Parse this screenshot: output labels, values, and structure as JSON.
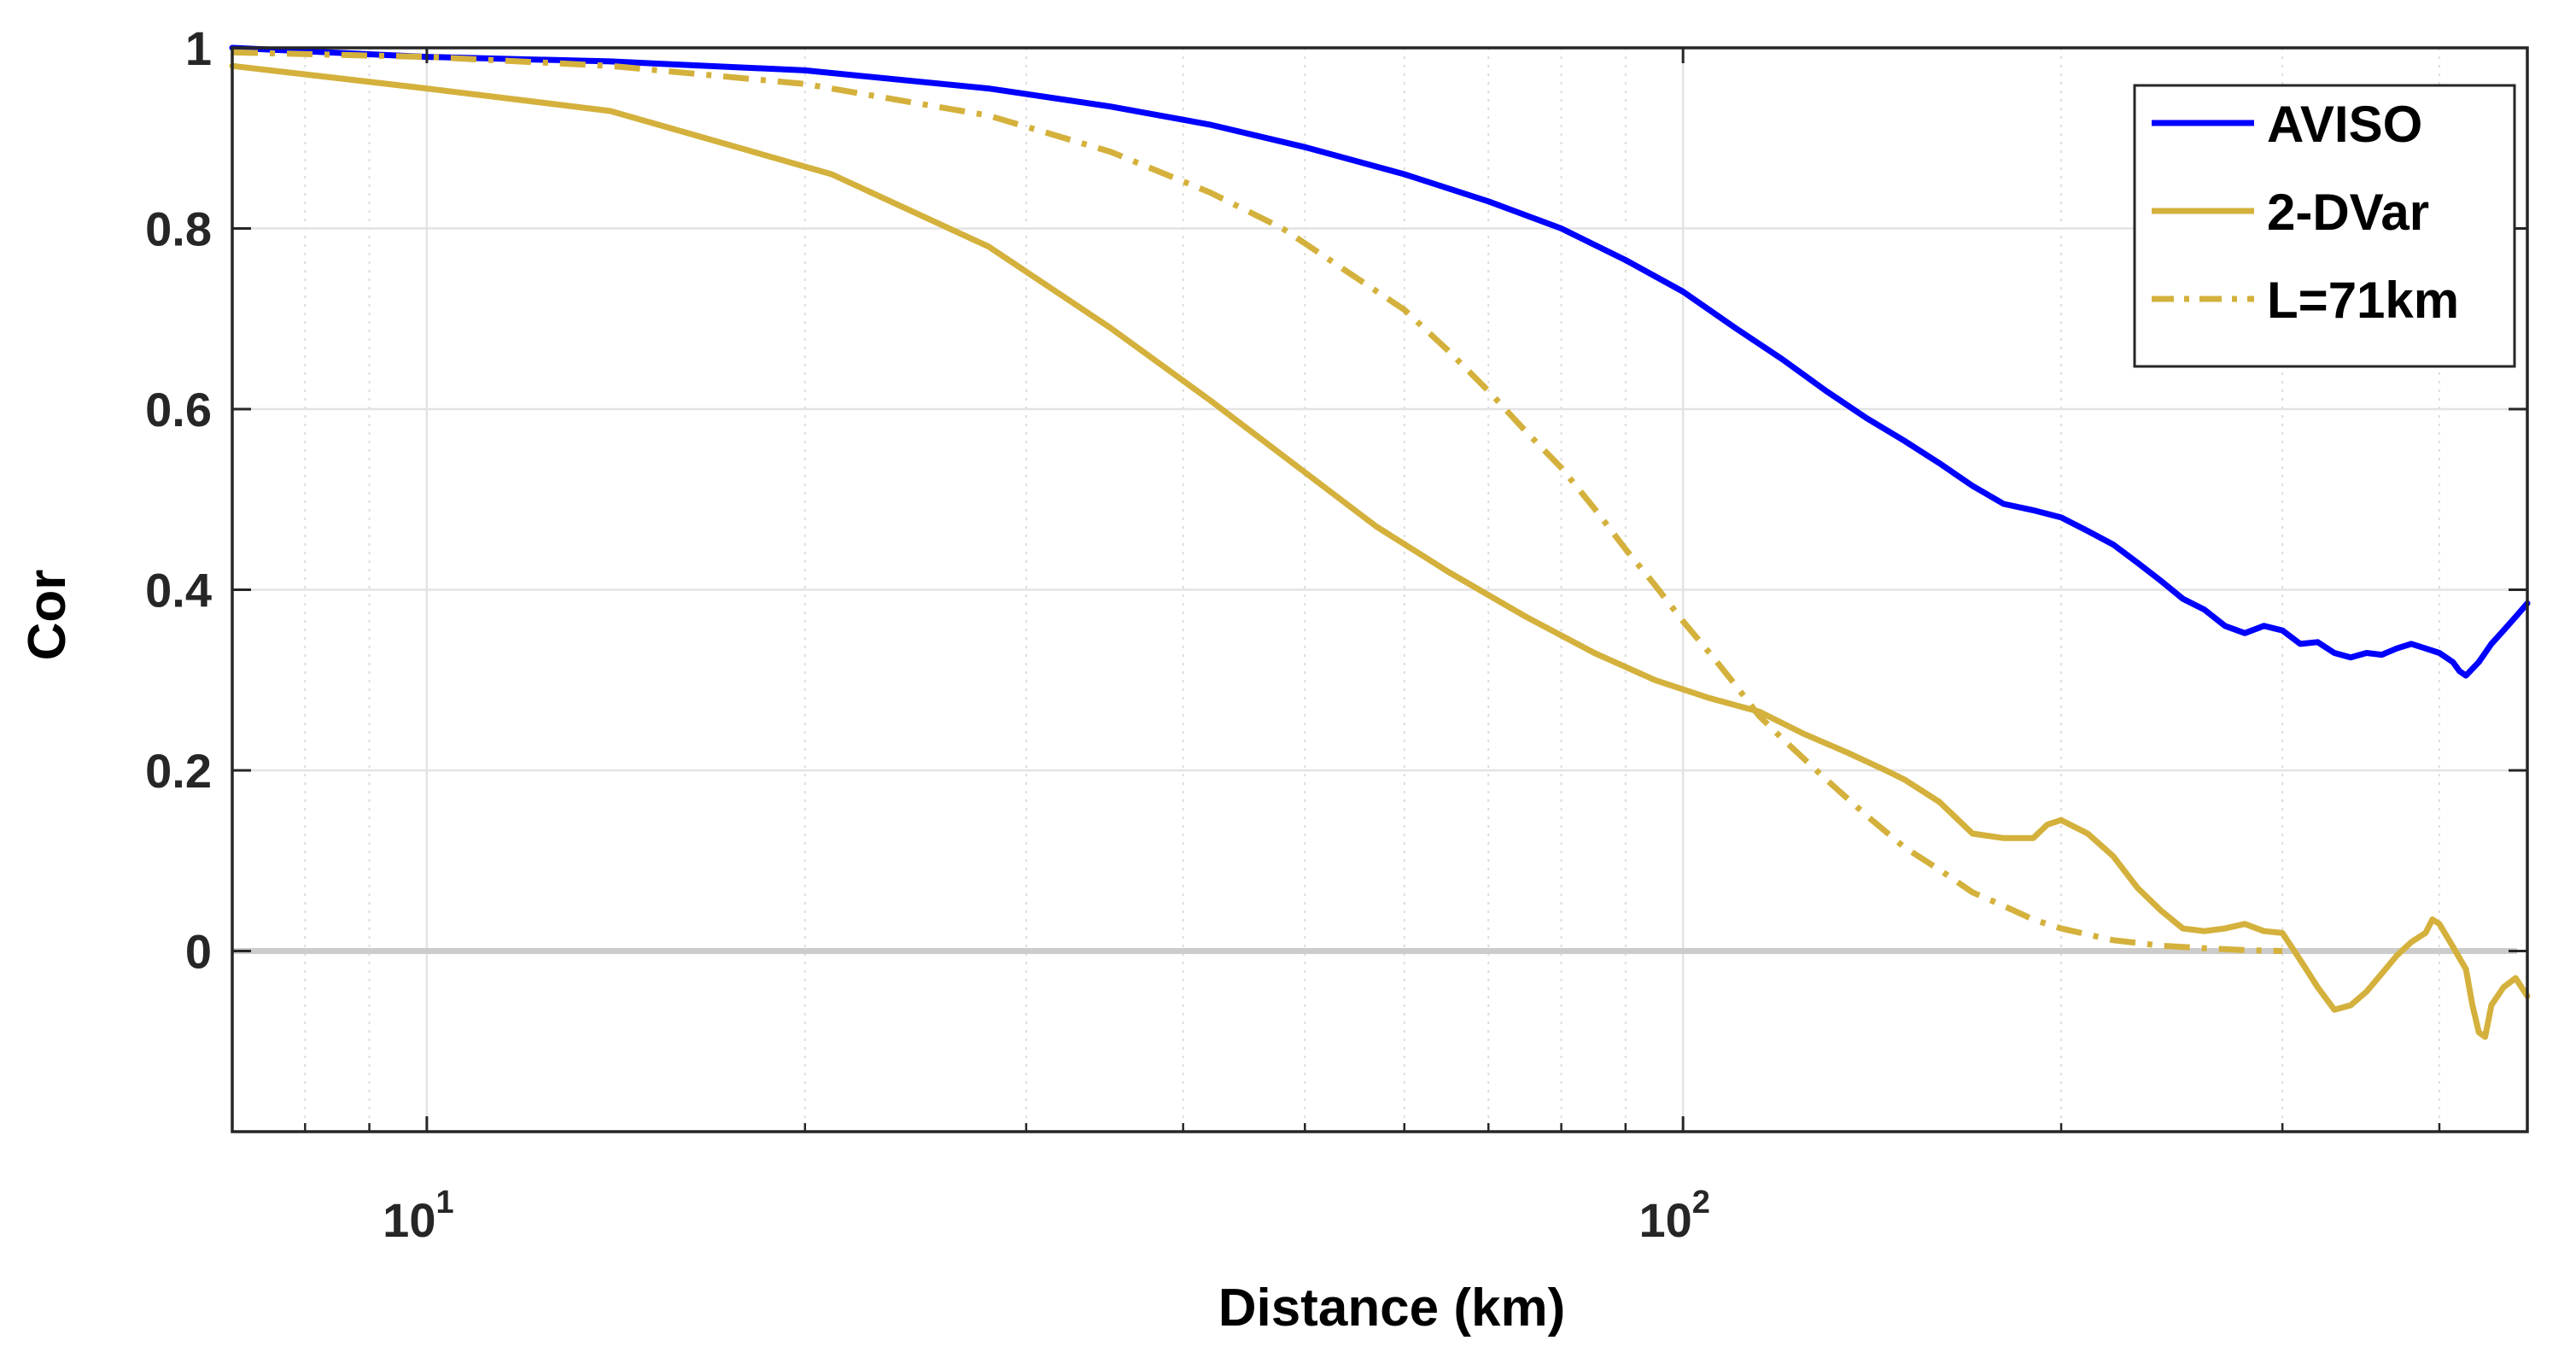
{
  "chart_data": {
    "type": "line",
    "xlabel": "Distance (km)",
    "ylabel": "Cor",
    "xscale": "log",
    "xlim": [
      7,
      470
    ],
    "ylim": [
      -0.2,
      1
    ],
    "grid": true,
    "x_ticks": [
      {
        "value": 10,
        "base": "10",
        "exp": "1"
      },
      {
        "value": 100,
        "base": "10",
        "exp": "2"
      }
    ],
    "y_ticks": [
      {
        "value": 0,
        "label": "0"
      },
      {
        "value": 0.2,
        "label": "0.2"
      },
      {
        "value": 0.4,
        "label": "0.4"
      },
      {
        "value": 0.6,
        "label": "0.6"
      },
      {
        "value": 0.8,
        "label": "0.8"
      },
      {
        "value": 1,
        "label": "1"
      }
    ],
    "zero_line": {
      "y": 0,
      "color": "#cccccc"
    },
    "legend": {
      "location": "top-right"
    },
    "series": [
      {
        "name": "AVISO",
        "color": "#0000ff",
        "style": "solid",
        "points": [
          [
            7,
            1.0
          ],
          [
            10,
            0.99
          ],
          [
            14,
            0.985
          ],
          [
            20,
            0.975
          ],
          [
            28,
            0.955
          ],
          [
            35,
            0.935
          ],
          [
            42,
            0.915
          ],
          [
            50,
            0.89
          ],
          [
            60,
            0.86
          ],
          [
            70,
            0.83
          ],
          [
            80,
            0.8
          ],
          [
            90,
            0.765
          ],
          [
            100,
            0.73
          ],
          [
            110,
            0.69
          ],
          [
            120,
            0.655
          ],
          [
            130,
            0.62
          ],
          [
            140,
            0.59
          ],
          [
            150,
            0.565
          ],
          [
            160,
            0.54
          ],
          [
            170,
            0.515
          ],
          [
            180,
            0.495
          ],
          [
            190,
            0.488
          ],
          [
            200,
            0.48
          ],
          [
            210,
            0.465
          ],
          [
            220,
            0.45
          ],
          [
            230,
            0.43
          ],
          [
            240,
            0.41
          ],
          [
            250,
            0.39
          ],
          [
            260,
            0.378
          ],
          [
            270,
            0.36
          ],
          [
            280,
            0.352
          ],
          [
            290,
            0.36
          ],
          [
            300,
            0.355
          ],
          [
            310,
            0.34
          ],
          [
            320,
            0.342
          ],
          [
            330,
            0.33
          ],
          [
            340,
            0.325
          ],
          [
            350,
            0.33
          ],
          [
            360,
            0.328
          ],
          [
            370,
            0.335
          ],
          [
            380,
            0.34
          ],
          [
            390,
            0.335
          ],
          [
            400,
            0.33
          ],
          [
            410,
            0.32
          ],
          [
            415,
            0.31
          ],
          [
            420,
            0.305
          ],
          [
            430,
            0.32
          ],
          [
            440,
            0.34
          ],
          [
            450,
            0.355
          ],
          [
            460,
            0.37
          ],
          [
            470,
            0.385
          ]
        ]
      },
      {
        "name": "2-DVar",
        "color": "#d4b13c",
        "style": "solid",
        "points": [
          [
            7,
            0.98
          ],
          [
            10,
            0.955
          ],
          [
            14,
            0.93
          ],
          [
            21,
            0.86
          ],
          [
            28,
            0.78
          ],
          [
            35,
            0.69
          ],
          [
            42,
            0.61
          ],
          [
            50,
            0.53
          ],
          [
            57,
            0.47
          ],
          [
            65,
            0.42
          ],
          [
            75,
            0.37
          ],
          [
            85,
            0.33
          ],
          [
            95,
            0.3
          ],
          [
            105,
            0.28
          ],
          [
            115,
            0.265
          ],
          [
            125,
            0.24
          ],
          [
            135,
            0.22
          ],
          [
            145,
            0.2
          ],
          [
            150,
            0.19
          ],
          [
            160,
            0.165
          ],
          [
            170,
            0.13
          ],
          [
            180,
            0.125
          ],
          [
            190,
            0.125
          ],
          [
            195,
            0.14
          ],
          [
            200,
            0.145
          ],
          [
            210,
            0.13
          ],
          [
            220,
            0.105
          ],
          [
            230,
            0.07
          ],
          [
            240,
            0.045
          ],
          [
            250,
            0.025
          ],
          [
            260,
            0.022
          ],
          [
            270,
            0.025
          ],
          [
            280,
            0.03
          ],
          [
            290,
            0.022
          ],
          [
            300,
            0.02
          ],
          [
            310,
            -0.01
          ],
          [
            320,
            -0.04
          ],
          [
            330,
            -0.065
          ],
          [
            340,
            -0.06
          ],
          [
            350,
            -0.045
          ],
          [
            360,
            -0.025
          ],
          [
            370,
            -0.005
          ],
          [
            380,
            0.01
          ],
          [
            390,
            0.02
          ],
          [
            395,
            0.035
          ],
          [
            400,
            0.03
          ],
          [
            410,
            0.005
          ],
          [
            420,
            -0.02
          ],
          [
            425,
            -0.06
          ],
          [
            430,
            -0.09
          ],
          [
            435,
            -0.095
          ],
          [
            440,
            -0.06
          ],
          [
            450,
            -0.04
          ],
          [
            460,
            -0.03
          ],
          [
            465,
            -0.04
          ],
          [
            470,
            -0.05
          ]
        ]
      },
      {
        "name": "L=71km",
        "color": "#d4b13c",
        "style": "dashdot",
        "points": [
          [
            7,
            0.995
          ],
          [
            10,
            0.99
          ],
          [
            14,
            0.98
          ],
          [
            20,
            0.96
          ],
          [
            28,
            0.925
          ],
          [
            35,
            0.885
          ],
          [
            42,
            0.84
          ],
          [
            48,
            0.8
          ],
          [
            55,
            0.745
          ],
          [
            60,
            0.71
          ],
          [
            65,
            0.665
          ],
          [
            70,
            0.62
          ],
          [
            75,
            0.575
          ],
          [
            80,
            0.535
          ],
          [
            85,
            0.49
          ],
          [
            90,
            0.445
          ],
          [
            95,
            0.405
          ],
          [
            100,
            0.365
          ],
          [
            105,
            0.33
          ],
          [
            110,
            0.295
          ],
          [
            115,
            0.26
          ],
          [
            120,
            0.235
          ],
          [
            130,
            0.19
          ],
          [
            140,
            0.15
          ],
          [
            150,
            0.115
          ],
          [
            160,
            0.09
          ],
          [
            170,
            0.065
          ],
          [
            180,
            0.05
          ],
          [
            190,
            0.035
          ],
          [
            200,
            0.025
          ],
          [
            220,
            0.012
          ],
          [
            240,
            0.006
          ],
          [
            260,
            0.003
          ],
          [
            280,
            0.001
          ],
          [
            300,
            0.0
          ]
        ]
      }
    ]
  }
}
